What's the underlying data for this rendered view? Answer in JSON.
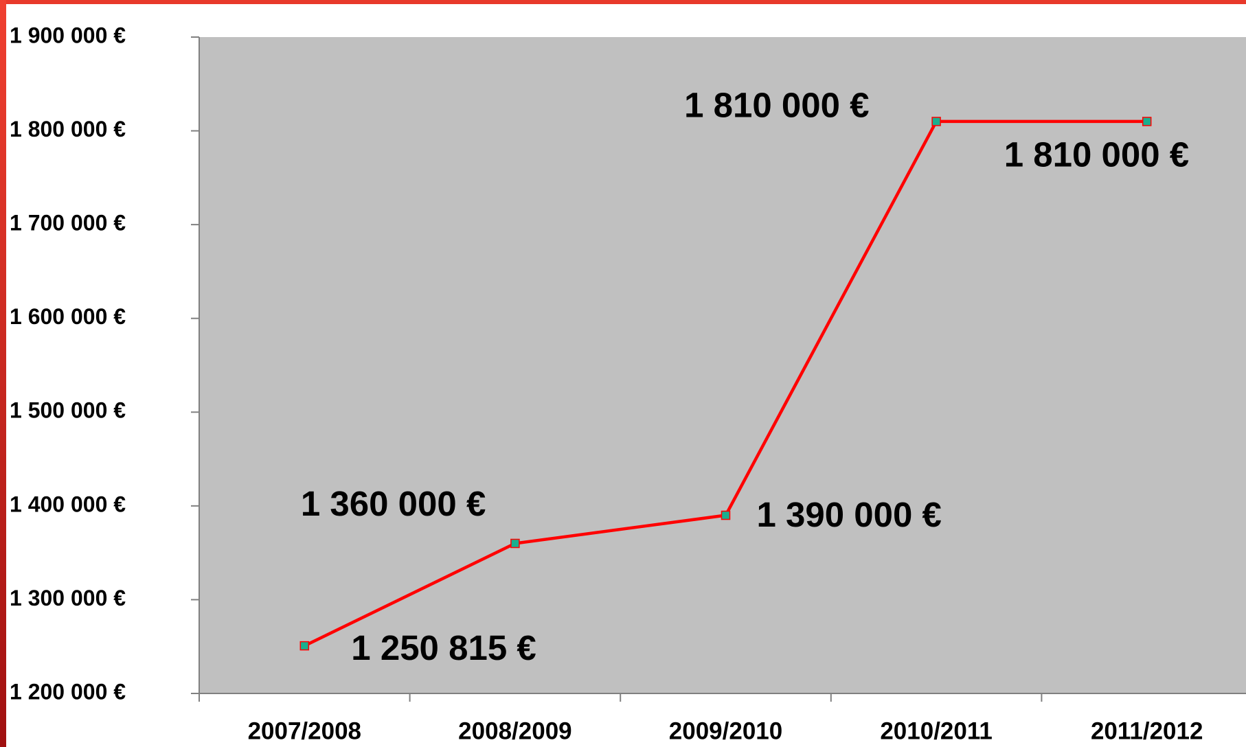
{
  "chart_data": {
    "type": "line",
    "categories": [
      "2007/2008",
      "2008/2009",
      "2009/2010",
      "2010/2011",
      "2011/2012"
    ],
    "series": [
      {
        "color": "#ff0000",
        "marker_color": "#1aaf8f",
        "values": [
          1250815,
          1360000,
          1390000,
          1810000,
          1810000
        ],
        "value_labels": [
          "1 250 815 €",
          "1 360 000 €",
          "1 390 000 €",
          "1 810 000 €",
          "1 810 000 €"
        ]
      }
    ],
    "ylim": [
      1200000,
      1900000
    ],
    "yticks": [
      {
        "value": 1200000,
        "label": "1 200 000 €"
      },
      {
        "value": 1300000,
        "label": "1 300 000 €"
      },
      {
        "value": 1400000,
        "label": "1 400 000 €"
      },
      {
        "value": 1500000,
        "label": "1 500 000 €"
      },
      {
        "value": 1600000,
        "label": "1 600 000 €"
      },
      {
        "value": 1700000,
        "label": "1 700 000 €"
      },
      {
        "value": 1800000,
        "label": "1 800 000 €"
      },
      {
        "value": 1900000,
        "label": "1 900 000 €"
      }
    ],
    "plot_background": "#c0c0c0"
  }
}
